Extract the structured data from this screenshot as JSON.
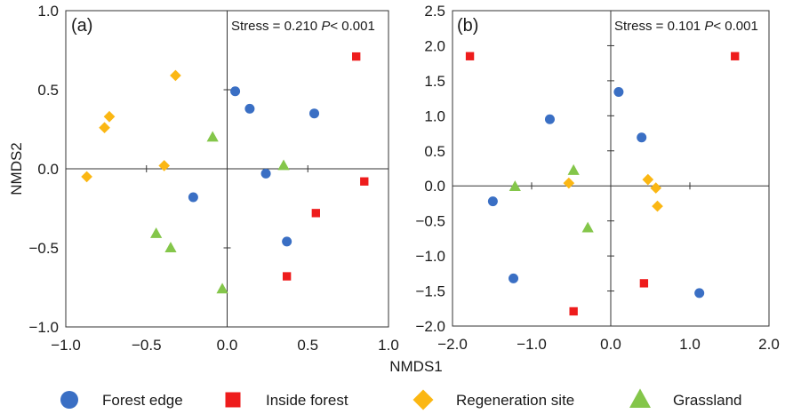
{
  "figure": {
    "xlabel": "NMDS1",
    "ylabel": "NMDS2"
  },
  "legend": [
    {
      "name": "Forest edge",
      "marker": "circle",
      "color": "#3a6fc4"
    },
    {
      "name": "Inside forest",
      "marker": "square",
      "color": "#ee1c1c"
    },
    {
      "name": "Regeneration site",
      "marker": "diamond",
      "color": "#fbb713"
    },
    {
      "name": "Grassland",
      "marker": "triangle",
      "color": "#84c64a"
    }
  ],
  "chart_data": [
    {
      "type": "scatter",
      "panel_label": "(a)",
      "stress_text": "Stress = 0.210",
      "p_label": "P",
      "p_value_text": "< 0.001",
      "xlim": [
        -1.0,
        1.0
      ],
      "ylim": [
        -1.0,
        1.0
      ],
      "xticks": [
        -1.0,
        -0.5,
        0.0,
        0.5,
        1.0
      ],
      "xtick_labels": [
        "−1.0",
        "−0.5",
        "0.0",
        "0.5",
        "1.0"
      ],
      "yticks": [
        -1.0,
        -0.5,
        0.0,
        0.5,
        1.0
      ],
      "ytick_labels": [
        "−1.0",
        "−0.5",
        "0.0",
        "0.5",
        "1.0"
      ],
      "show_xtick_labels": true,
      "show_xlabel": true,
      "show_ylabel": true,
      "series": [
        {
          "name": "Forest edge",
          "marker": "circle",
          "color": "#3a6fc4",
          "points": [
            [
              0.05,
              0.49
            ],
            [
              0.14,
              0.38
            ],
            [
              0.54,
              0.35
            ],
            [
              0.24,
              -0.03
            ],
            [
              -0.21,
              -0.18
            ],
            [
              0.37,
              -0.46
            ]
          ]
        },
        {
          "name": "Inside forest",
          "marker": "square",
          "color": "#ee1c1c",
          "points": [
            [
              0.8,
              0.71
            ],
            [
              0.85,
              -0.08
            ],
            [
              0.55,
              -0.28
            ],
            [
              0.37,
              -0.68
            ]
          ]
        },
        {
          "name": "Regeneration site",
          "marker": "diamond",
          "color": "#fbb713",
          "points": [
            [
              -0.32,
              0.59
            ],
            [
              -0.73,
              0.33
            ],
            [
              -0.76,
              0.26
            ],
            [
              -0.39,
              0.02
            ],
            [
              -0.87,
              -0.05
            ]
          ]
        },
        {
          "name": "Grassland",
          "marker": "triangle",
          "color": "#84c64a",
          "points": [
            [
              -0.09,
              0.2
            ],
            [
              0.35,
              0.02
            ],
            [
              -0.44,
              -0.41
            ],
            [
              -0.35,
              -0.5
            ],
            [
              -0.03,
              -0.76
            ]
          ]
        }
      ]
    },
    {
      "type": "scatter",
      "panel_label": "(b)",
      "stress_text": "Stress = 0.101",
      "p_label": "P",
      "p_value_text": "< 0.001",
      "xlim": [
        -2.0,
        2.0
      ],
      "ylim": [
        -2.0,
        2.5
      ],
      "xticks": [
        -2.0,
        -1.0,
        0.0,
        1.0,
        2.0
      ],
      "xtick_labels": [
        "−2.0",
        "−1.0",
        "0.0",
        "1.0",
        "2.0"
      ],
      "yticks": [
        -2.0,
        -1.5,
        -1.0,
        -0.5,
        0.0,
        0.5,
        1.0,
        1.5,
        2.0,
        2.5
      ],
      "ytick_labels": [
        "−2.0",
        "−1.5",
        "−1.0",
        "−0.5",
        "0.0",
        "0.5",
        "1.0",
        "1.5",
        "2.0",
        "2.5"
      ],
      "show_xtick_labels": true,
      "show_xlabel": false,
      "show_ylabel": false,
      "series": [
        {
          "name": "Forest edge",
          "marker": "circle",
          "color": "#3a6fc4",
          "points": [
            [
              0.1,
              1.34
            ],
            [
              -0.77,
              0.95
            ],
            [
              0.39,
              0.69
            ],
            [
              -1.49,
              -0.22
            ],
            [
              -1.23,
              -1.32
            ],
            [
              1.12,
              -1.53
            ]
          ]
        },
        {
          "name": "Inside forest",
          "marker": "square",
          "color": "#ee1c1c",
          "points": [
            [
              -1.78,
              1.85
            ],
            [
              1.57,
              1.85
            ],
            [
              0.42,
              -1.39
            ],
            [
              -0.47,
              -1.79
            ]
          ]
        },
        {
          "name": "Regeneration site",
          "marker": "diamond",
          "color": "#fbb713",
          "points": [
            [
              0.47,
              0.09
            ],
            [
              -0.53,
              0.04
            ],
            [
              0.57,
              -0.03
            ],
            [
              0.59,
              -0.29
            ]
          ]
        },
        {
          "name": "Grassland",
          "marker": "triangle",
          "color": "#84c64a",
          "points": [
            [
              -0.47,
              0.22
            ],
            [
              -1.21,
              -0.01
            ],
            [
              -0.29,
              -0.6
            ]
          ]
        }
      ]
    }
  ]
}
